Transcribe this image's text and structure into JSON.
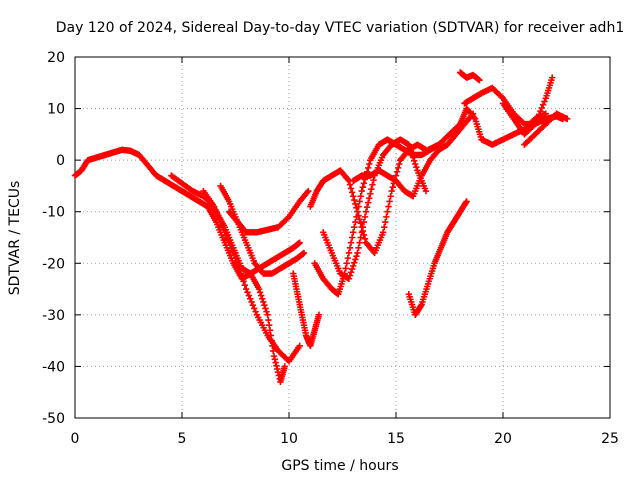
{
  "chart_data": {
    "type": "scatter",
    "title": "Day 120 of 2024, Sidereal Day-to-day VTEC variation (SDTVAR) for receiver adh1",
    "xlabel": "GPS time / hours",
    "ylabel": "SDTVAR / TECUs",
    "xlim": [
      0,
      25
    ],
    "ylim": [
      -50,
      20
    ],
    "xticks": [
      0,
      5,
      10,
      15,
      20,
      25
    ],
    "yticks": [
      -50,
      -40,
      -30,
      -20,
      -10,
      0,
      10,
      20
    ],
    "grid": true,
    "marker": "plus",
    "color": "#ff0000",
    "series": [
      {
        "x": [
          0.0,
          0.3,
          0.6,
          1.0,
          1.4,
          1.8,
          2.2,
          2.6,
          3.0,
          3.4,
          3.8,
          4.2,
          4.6,
          5.0,
          5.4,
          5.8,
          6.2,
          6.6,
          7.0,
          7.4,
          7.8,
          8.2,
          8.6,
          9.0,
          9.3,
          9.6,
          9.8
        ],
        "y": [
          -3,
          -2,
          0,
          0.5,
          1,
          1.5,
          2,
          1.8,
          1,
          -1,
          -3,
          -4,
          -5,
          -6,
          -7,
          -8,
          -9,
          -12,
          -16,
          -20,
          -23,
          -22,
          -25,
          -30,
          -38,
          -43,
          -40
        ]
      },
      {
        "x": [
          4.5,
          5.0,
          5.5,
          6.0,
          6.3,
          6.6,
          7.0,
          7.4,
          7.8,
          8.2,
          8.6,
          9.0,
          9.4,
          9.8,
          10.2,
          10.5
        ],
        "y": [
          -3,
          -4.5,
          -6,
          -7,
          -8,
          -10,
          -13,
          -17,
          -21,
          -22,
          -21,
          -20,
          -19,
          -18,
          -17,
          -16
        ]
      },
      {
        "x": [
          6.0,
          6.5,
          7.0,
          7.5,
          8.0,
          8.5,
          9.0,
          9.5,
          10.0,
          10.5
        ],
        "y": [
          -6,
          -9,
          -14,
          -19,
          -25,
          -30,
          -34,
          -37,
          -39,
          -36
        ]
      },
      {
        "x": [
          7.2,
          7.6,
          8.0,
          8.5,
          9.0,
          9.5,
          10.0,
          10.5,
          10.9
        ],
        "y": [
          -10,
          -12,
          -14,
          -14,
          -13.5,
          -13,
          -11,
          -8,
          -6
        ]
      },
      {
        "x": [
          6.8,
          7.2,
          7.6,
          8.0,
          8.4,
          8.8,
          9.2,
          9.6,
          10.0,
          10.4,
          10.7
        ],
        "y": [
          -5,
          -8,
          -12,
          -16,
          -20,
          -22,
          -22,
          -21,
          -20,
          -19,
          -18
        ]
      },
      {
        "x": [
          10.2,
          10.4,
          10.6,
          10.8,
          11.0,
          11.2,
          11.4
        ],
        "y": [
          -22,
          -26,
          -30,
          -34,
          -36,
          -33,
          -30
        ]
      },
      {
        "x": [
          11.0,
          11.3,
          11.6,
          12.0,
          12.4,
          12.8,
          13.2,
          13.6,
          14.0,
          14.4,
          14.8,
          15.2,
          15.6,
          16.0,
          16.4
        ],
        "y": [
          -9,
          -6,
          -4,
          -3,
          -2,
          -4,
          -10,
          -16,
          -18,
          -14,
          -6,
          0,
          2,
          3,
          2
        ]
      },
      {
        "x": [
          11.2,
          11.6,
          12.0,
          12.3,
          12.6,
          13.0,
          13.4,
          13.8,
          14.2,
          14.6,
          15.0,
          15.4,
          15.8,
          16.2,
          16.6,
          17.0
        ],
        "y": [
          -20,
          -23,
          -25,
          -26,
          -22,
          -14,
          -6,
          0,
          3,
          4,
          3,
          2,
          1,
          1,
          2,
          3
        ]
      },
      {
        "x": [
          11.6,
          12.0,
          12.4,
          12.8,
          13.2,
          13.6,
          14.0,
          14.4,
          14.8,
          15.2,
          15.6,
          16.0,
          16.4
        ],
        "y": [
          -14,
          -18,
          -22,
          -23,
          -18,
          -10,
          -3,
          1,
          3,
          4,
          3,
          -2,
          -6
        ]
      },
      {
        "x": [
          13.0,
          13.4,
          13.8,
          14.2,
          14.6,
          15.0,
          15.4,
          15.8,
          16.2,
          16.6,
          17.0,
          17.4,
          17.8,
          18.2,
          18.6
        ],
        "y": [
          -4,
          -3,
          -3,
          -2,
          -3,
          -4,
          -6,
          -7,
          -3,
          0,
          2,
          3,
          5,
          7,
          9
        ]
      },
      {
        "x": [
          15.6,
          15.9,
          16.2,
          16.5,
          16.8,
          17.1,
          17.4,
          17.7,
          18.0,
          18.3
        ],
        "y": [
          -26,
          -30,
          -28,
          -24,
          -20,
          -17,
          -14,
          -12,
          -10,
          -8
        ]
      },
      {
        "x": [
          16.5,
          17.0,
          17.5,
          18.0,
          18.3,
          18.7,
          19.0,
          19.5,
          20.0,
          20.5,
          21.0,
          21.5,
          22.0
        ],
        "y": [
          2,
          3,
          5,
          7,
          10,
          8,
          4,
          3,
          4,
          5,
          6,
          8,
          9
        ]
      },
      {
        "x": [
          18.2,
          18.6,
          19.0,
          19.5,
          20.0,
          20.5,
          21.0,
          21.5,
          22.0,
          22.5,
          22.8
        ],
        "y": [
          11,
          12,
          13,
          14,
          12,
          9,
          7,
          7,
          8,
          8.5,
          8
        ]
      },
      {
        "x": [
          20.0,
          20.5,
          21.0,
          21.5,
          22.0,
          22.3
        ],
        "y": [
          11,
          8,
          5,
          7,
          12,
          16
        ]
      },
      {
        "x": [
          21.0,
          21.5,
          22.0,
          22.5,
          23.0
        ],
        "y": [
          3,
          5,
          7,
          9,
          8
        ]
      },
      {
        "x": [
          18.0,
          18.3,
          18.6,
          18.9
        ],
        "y": [
          17,
          16,
          16.5,
          15.5
        ]
      }
    ]
  }
}
